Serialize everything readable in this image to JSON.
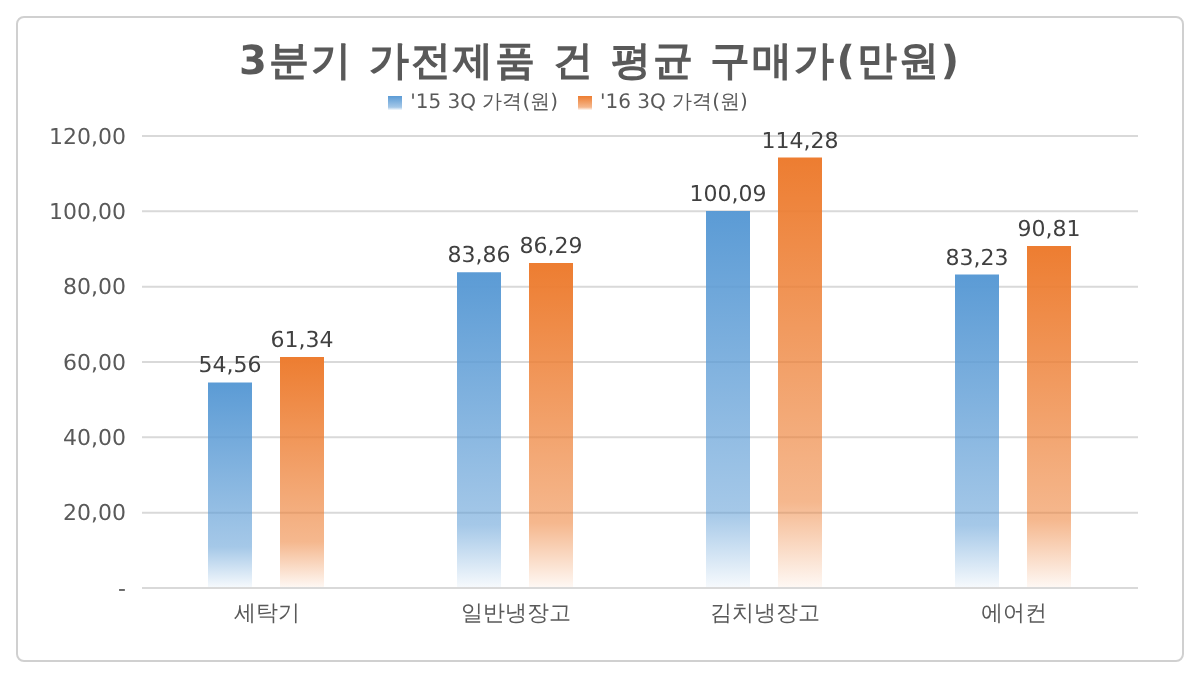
{
  "chart_data": {
    "type": "bar",
    "title": "3분기 가전제품 건 평균 구매가(만원)",
    "categories": [
      "세탁기",
      "일반냉장고",
      "김치냉장고",
      "에어컨"
    ],
    "series": [
      {
        "name": "'15 3Q 가격(원)",
        "color": "#5b9bd5",
        "values": [
          54.56,
          83.86,
          100.09,
          83.23
        ],
        "value_labels": [
          "54,56",
          "83,86",
          "100,09",
          "83,23"
        ]
      },
      {
        "name": "'16 3Q 가격(원)",
        "color": "#ed7d31",
        "values": [
          61.34,
          86.29,
          114.28,
          90.81
        ],
        "value_labels": [
          "61,34",
          "86,29",
          "114,28",
          "90,81"
        ]
      }
    ],
    "ylim": [
      0,
      120
    ],
    "yticks": [
      {
        "value": 0,
        "label": "-"
      },
      {
        "value": 20,
        "label": "20,00"
      },
      {
        "value": 40,
        "label": "40,00"
      },
      {
        "value": 60,
        "label": "60,00"
      },
      {
        "value": 80,
        "label": "80,00"
      },
      {
        "value": 100,
        "label": "100,00"
      },
      {
        "value": 120,
        "label": "120,00"
      }
    ],
    "grid": "y",
    "legend": "top"
  }
}
